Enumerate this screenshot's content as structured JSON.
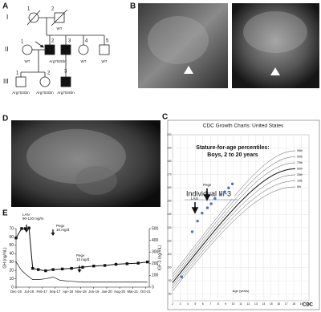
{
  "panel_labels": [
    "A",
    "B",
    "C",
    "D",
    "E"
  ],
  "pedigree": {
    "generations": [
      "I",
      "II",
      "III"
    ],
    "individuals": [
      {
        "number": "1"
      },
      {
        "number": "2",
        "genotype": "WT"
      },
      {
        "number": "1",
        "genotype": "WT"
      },
      {
        "number": "2",
        "genotype": "Arg703Gln"
      },
      {
        "number": "3"
      },
      {
        "number": "4",
        "genotype": "WT"
      },
      {
        "number": "5",
        "genotype": "WT"
      },
      {
        "number": "1",
        "genotype": "Arg703Gln"
      },
      {
        "number": "2",
        "genotype": "Arg703Gln"
      },
      {
        "number": "3",
        "genotype": "Arg703Gln"
      }
    ]
  },
  "growth_chart": {
    "type": "scatter",
    "title": "CDC Growth Charts: United States",
    "subtitle": "Stature-for-age percentiles:",
    "subtitle2": "Boys, 2 to 20 years",
    "individual_label": "Individual III-3",
    "x_label": "Age (years)",
    "xlim": [
      2,
      20
    ],
    "xticks": [
      2,
      3,
      4,
      5,
      6,
      7,
      8,
      9,
      10,
      11,
      12,
      13,
      14,
      15,
      16,
      17,
      18,
      19,
      20
    ],
    "ylim": [
      75,
      200
    ],
    "yticks": [
      80,
      90,
      100,
      110,
      120,
      130,
      140,
      150,
      160,
      170,
      180,
      190,
      200
    ],
    "percentiles": [
      "95th",
      "90th",
      "75th",
      "50th",
      "25th",
      "10th",
      "5th"
    ],
    "x": [
      3.2,
      4.6,
      5.3,
      5.9,
      6.6,
      7.1,
      7.6,
      8.3,
      8.9,
      9.4,
      9.9
    ],
    "values": [
      93,
      127,
      135,
      141,
      145,
      148,
      152,
      155,
      157,
      160,
      163
    ],
    "color": "#4a72b8",
    "annotations": [
      "Pegv",
      "LAN"
    ],
    "logo": "CDC"
  },
  "hormone_chart": {
    "type": "line",
    "y_label": "GH (ng/mL)",
    "y2_label": "IGF-1 (ng/mL)",
    "xlim": [
      0,
      72
    ],
    "xticks": [
      {
        "value": 0,
        "label": "Dec-15"
      },
      {
        "value": 7,
        "label": "Jul-16"
      },
      {
        "value": 14,
        "label": "Feb-17"
      },
      {
        "value": 21,
        "label": "Sep-17"
      },
      {
        "value": 28,
        "label": "Apr-18"
      },
      {
        "value": 35,
        "label": "Nov-18"
      },
      {
        "value": 42,
        "label": "Jun-19"
      },
      {
        "value": 49,
        "label": "Jan-20"
      },
      {
        "value": 56,
        "label": "Aug-20"
      },
      {
        "value": 63,
        "label": "Mar-21"
      },
      {
        "value": 70,
        "label": "Oct-21"
      }
    ],
    "ylim": [
      0,
      70
    ],
    "yticks": [
      0,
      10,
      20,
      30,
      40,
      50,
      60,
      70
    ],
    "y2lim": [
      0,
      500
    ],
    "y2ticks": [
      0,
      100,
      200,
      300,
      400,
      500
    ],
    "series": [
      {
        "axis": "y2",
        "marker": "square",
        "color": "#111111",
        "x": [
          0,
          3,
          5,
          7,
          9,
          12,
          16,
          20,
          25,
          30,
          36,
          42,
          48,
          54,
          60,
          66,
          71
        ],
        "values": [
          420,
          500,
          500,
          505,
          160,
          150,
          140,
          150,
          155,
          160,
          170,
          180,
          185,
          195,
          200,
          205,
          215
        ]
      },
      {
        "color": "#111111",
        "x": [
          0,
          3,
          6,
          9,
          12,
          16,
          20,
          24,
          30,
          36,
          42,
          50,
          60,
          71
        ],
        "values": [
          30,
          20,
          14,
          9,
          9,
          10,
          12,
          8,
          7,
          6,
          6,
          6,
          6,
          6
        ]
      }
    ],
    "annotations": [
      {
        "text": "LAN",
        "detail": "90-120 mg/m"
      },
      {
        "text": "Pegv",
        "detail": "10 mg/d"
      },
      {
        "text": "Pegv",
        "detail": "15 mg/d"
      }
    ]
  }
}
